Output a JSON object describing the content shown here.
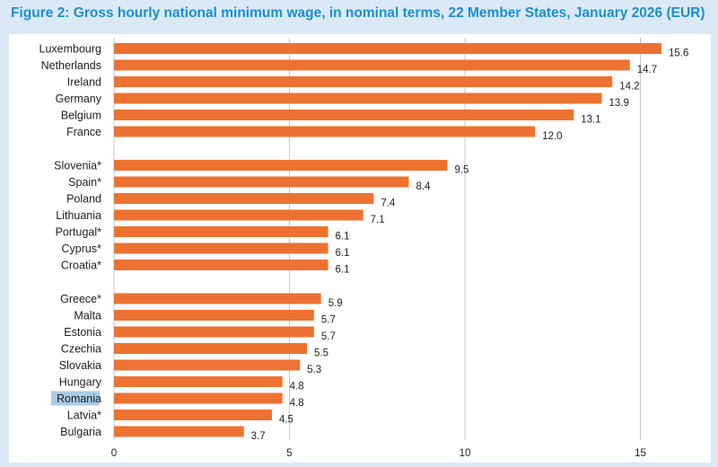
{
  "title": "Figure 2: Gross hourly national minimum wage, in nominal terms, 22 Member States, January 2026 (EUR)",
  "colors": {
    "bar": "#ed7231",
    "background": "#dbe9f6",
    "title": "#1a8fd0",
    "highlight": "#a9cbe6",
    "grid": "#c8c8c8"
  },
  "chart_data": {
    "type": "bar",
    "orientation": "horizontal",
    "title": "Figure 2: Gross hourly national minimum wage, in nominal terms, 22 Member States, January 2026 (EUR)",
    "xlabel": "",
    "ylabel": "",
    "xlim": [
      0,
      16.5
    ],
    "ticks": [
      0,
      5,
      10,
      15
    ],
    "grid": true,
    "legend": "none",
    "highlighted_category": "Romania",
    "groups": [
      {
        "categories": [
          "Luxembourg",
          "Netherlands",
          "Ireland",
          "Germany",
          "Belgium",
          "France"
        ],
        "values": [
          15.6,
          14.7,
          14.2,
          13.9,
          13.1,
          12.0
        ],
        "value_labels": [
          "15.6",
          "14.7",
          "14.2",
          "13.9",
          "13.1",
          "12.0"
        ]
      },
      {
        "categories": [
          "Slovenia*",
          "Spain*",
          "Poland",
          "Lithuania",
          "Portugal*",
          "Cyprus*",
          "Croatia*"
        ],
        "values": [
          9.5,
          8.4,
          7.4,
          7.1,
          6.1,
          6.1,
          6.1
        ],
        "value_labels": [
          "9.5",
          "8.4",
          "7.4",
          "7.1",
          "6.1",
          "6.1",
          "6.1"
        ]
      },
      {
        "categories": [
          "Greece*",
          "Malta",
          "Estonia",
          "Czechia",
          "Slovakia",
          "Hungary",
          "Romania",
          "Latvia*",
          "Bulgaria"
        ],
        "values": [
          5.9,
          5.7,
          5.7,
          5.5,
          5.3,
          4.8,
          4.8,
          4.5,
          3.7
        ],
        "value_labels": [
          "5.9",
          "5.7",
          "5.7",
          "5.5",
          "5.3",
          "4.8",
          "4.8",
          "4.5",
          "3.7"
        ]
      }
    ]
  }
}
